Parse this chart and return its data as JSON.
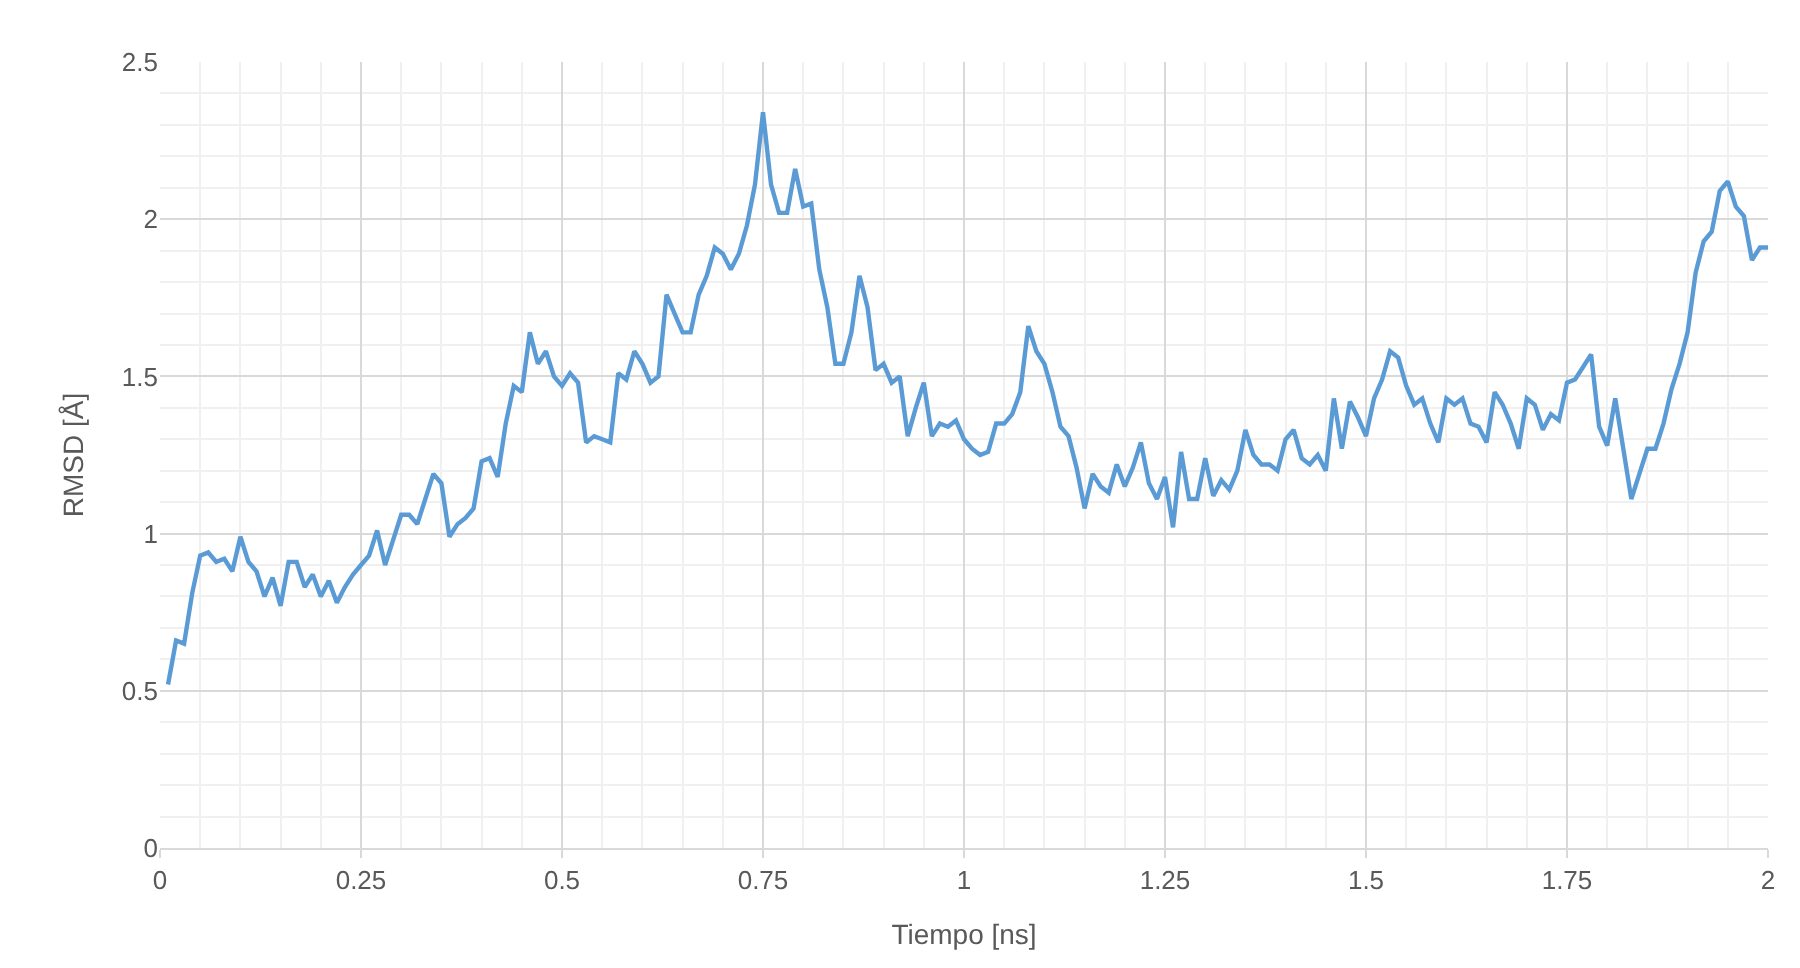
{
  "chart_data": {
    "type": "line",
    "xlabel": "Tiempo [ns]",
    "ylabel": "RMSD [Å]",
    "xlim": [
      0,
      2
    ],
    "xticks": [
      0,
      0.25,
      0.5,
      0.75,
      1,
      1.25,
      1.5,
      1.75,
      2
    ],
    "ylim": [
      0,
      2.5
    ],
    "yticks": [
      0,
      0.5,
      1,
      1.5,
      2,
      2.5
    ],
    "grid": true,
    "marker": "none",
    "line_style": "solid",
    "x": [
      0.01,
      0.02,
      0.03,
      0.04,
      0.05,
      0.06,
      0.07,
      0.08,
      0.09,
      0.1,
      0.11,
      0.12,
      0.13,
      0.14,
      0.15,
      0.16,
      0.17,
      0.18,
      0.19,
      0.2,
      0.21,
      0.22,
      0.23,
      0.24,
      0.25,
      0.26,
      0.27,
      0.28,
      0.29,
      0.3,
      0.31,
      0.32,
      0.33,
      0.34,
      0.35,
      0.36,
      0.37,
      0.38,
      0.39,
      0.4,
      0.41,
      0.42,
      0.43,
      0.44,
      0.45,
      0.46,
      0.47,
      0.48,
      0.49,
      0.5,
      0.51,
      0.52,
      0.53,
      0.54,
      0.55,
      0.56,
      0.57,
      0.58,
      0.59,
      0.6,
      0.61,
      0.62,
      0.63,
      0.64,
      0.65,
      0.66,
      0.67,
      0.68,
      0.69,
      0.7,
      0.71,
      0.72,
      0.73,
      0.74,
      0.75,
      0.76,
      0.77,
      0.78,
      0.79,
      0.8,
      0.81,
      0.82,
      0.83,
      0.84,
      0.85,
      0.86,
      0.87,
      0.88,
      0.89,
      0.9,
      0.91,
      0.92,
      0.93,
      0.94,
      0.95,
      0.96,
      0.97,
      0.98,
      0.99,
      1.0,
      1.01,
      1.02,
      1.03,
      1.04,
      1.05,
      1.06,
      1.07,
      1.08,
      1.09,
      1.1,
      1.11,
      1.12,
      1.13,
      1.14,
      1.15,
      1.16,
      1.17,
      1.18,
      1.19,
      1.2,
      1.21,
      1.22,
      1.23,
      1.24,
      1.25,
      1.26,
      1.27,
      1.28,
      1.29,
      1.3,
      1.31,
      1.32,
      1.33,
      1.34,
      1.35,
      1.36,
      1.37,
      1.38,
      1.39,
      1.4,
      1.41,
      1.42,
      1.43,
      1.44,
      1.45,
      1.46,
      1.47,
      1.48,
      1.49,
      1.5,
      1.51,
      1.52,
      1.53,
      1.54,
      1.55,
      1.56,
      1.57,
      1.58,
      1.59,
      1.6,
      1.61,
      1.62,
      1.63,
      1.64,
      1.65,
      1.66,
      1.67,
      1.68,
      1.69,
      1.7,
      1.71,
      1.72,
      1.73,
      1.74,
      1.75,
      1.76,
      1.77,
      1.78,
      1.79,
      1.8,
      1.81,
      1.82,
      1.83,
      1.84,
      1.85,
      1.86,
      1.87,
      1.88,
      1.89,
      1.9,
      1.91,
      1.92,
      1.93,
      1.94,
      1.95,
      1.96,
      1.97,
      1.98,
      1.99,
      2.0
    ],
    "series": [
      {
        "color": "#5b9bd5",
        "values": [
          0.52,
          0.66,
          0.65,
          0.81,
          0.93,
          0.94,
          0.91,
          0.92,
          0.88,
          0.99,
          0.91,
          0.88,
          0.8,
          0.86,
          0.77,
          0.91,
          0.91,
          0.83,
          0.87,
          0.8,
          0.85,
          0.78,
          0.83,
          0.87,
          0.9,
          0.93,
          1.01,
          0.9,
          0.98,
          1.06,
          1.06,
          1.03,
          1.11,
          1.19,
          1.16,
          0.99,
          1.03,
          1.05,
          1.08,
          1.23,
          1.24,
          1.18,
          1.35,
          1.47,
          1.45,
          1.64,
          1.54,
          1.58,
          1.5,
          1.47,
          1.51,
          1.48,
          1.29,
          1.31,
          1.3,
          1.29,
          1.51,
          1.49,
          1.58,
          1.54,
          1.48,
          1.5,
          1.76,
          1.7,
          1.64,
          1.64,
          1.76,
          1.82,
          1.91,
          1.89,
          1.84,
          1.89,
          1.98,
          2.11,
          2.34,
          2.11,
          2.02,
          2.02,
          2.16,
          2.04,
          2.05,
          1.84,
          1.72,
          1.54,
          1.54,
          1.64,
          1.82,
          1.72,
          1.52,
          1.54,
          1.48,
          1.5,
          1.31,
          1.4,
          1.48,
          1.31,
          1.35,
          1.34,
          1.36,
          1.3,
          1.27,
          1.25,
          1.26,
          1.35,
          1.35,
          1.38,
          1.45,
          1.66,
          1.58,
          1.54,
          1.45,
          1.34,
          1.31,
          1.21,
          1.08,
          1.19,
          1.15,
          1.13,
          1.22,
          1.15,
          1.21,
          1.29,
          1.16,
          1.11,
          1.18,
          1.02,
          1.26,
          1.11,
          1.11,
          1.24,
          1.12,
          1.17,
          1.14,
          1.2,
          1.33,
          1.25,
          1.22,
          1.22,
          1.2,
          1.3,
          1.33,
          1.24,
          1.22,
          1.25,
          1.2,
          1.43,
          1.27,
          1.42,
          1.37,
          1.31,
          1.43,
          1.49,
          1.58,
          1.56,
          1.47,
          1.41,
          1.43,
          1.35,
          1.29,
          1.43,
          1.41,
          1.43,
          1.35,
          1.34,
          1.29,
          1.45,
          1.41,
          1.35,
          1.27,
          1.43,
          1.41,
          1.33,
          1.38,
          1.36,
          1.48,
          1.49,
          1.53,
          1.57,
          1.34,
          1.28,
          1.43,
          1.27,
          1.11,
          1.19,
          1.27,
          1.27,
          1.35,
          1.46,
          1.54,
          1.64,
          1.83,
          1.93,
          1.96,
          2.09,
          2.12,
          2.04,
          2.01,
          1.87,
          1.91,
          1.91
        ]
      }
    ]
  }
}
